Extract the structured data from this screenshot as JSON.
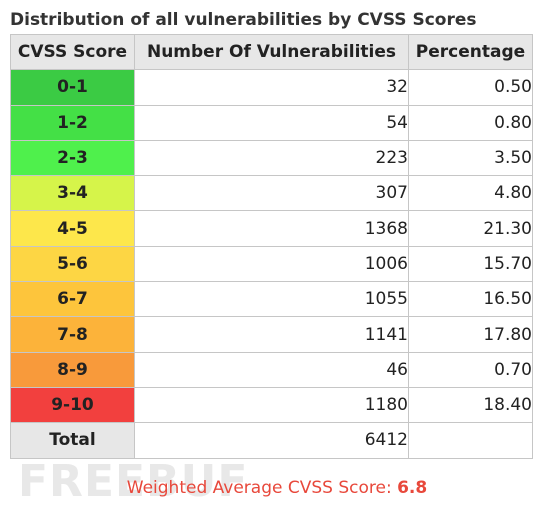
{
  "title": "Distribution of all vulnerabilities by CVSS Scores",
  "headers": {
    "score": "CVSS Score",
    "count": "Number Of Vulnerabilities",
    "percent": "Percentage"
  },
  "rows": [
    {
      "range": "0-1",
      "count": "32",
      "percent": "0.50",
      "color": "#3bcb44"
    },
    {
      "range": "1-2",
      "count": "54",
      "percent": "0.80",
      "color": "#44e046"
    },
    {
      "range": "2-3",
      "count": "223",
      "percent": "3.50",
      "color": "#4ff04c"
    },
    {
      "range": "3-4",
      "count": "307",
      "percent": "4.80",
      "color": "#d6f44a"
    },
    {
      "range": "4-5",
      "count": "1368",
      "percent": "21.30",
      "color": "#fde74b"
    },
    {
      "range": "5-6",
      "count": "1006",
      "percent": "15.70",
      "color": "#fdd644"
    },
    {
      "range": "6-7",
      "count": "1055",
      "percent": "16.50",
      "color": "#fdc53c"
    },
    {
      "range": "7-8",
      "count": "1141",
      "percent": "17.80",
      "color": "#fcb33a"
    },
    {
      "range": "8-9",
      "count": "46",
      "percent": "0.70",
      "color": "#f89a3b"
    },
    {
      "range": "9-10",
      "count": "1180",
      "percent": "18.40",
      "color": "#f2403e"
    }
  ],
  "total": {
    "label": "Total",
    "count": "6412"
  },
  "weighted": {
    "label": "Weighted Average CVSS Score:",
    "value": "6.8"
  },
  "watermark": "FREEBUF"
}
